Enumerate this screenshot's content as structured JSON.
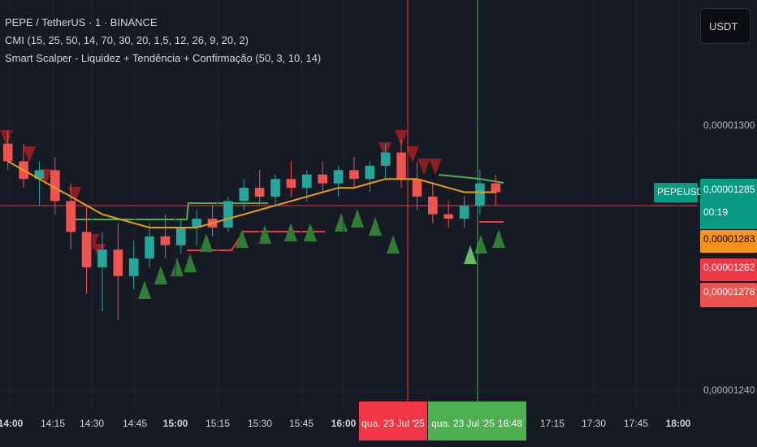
{
  "header": {
    "symbol": "PEPE / TetherUS · 1 · BINANCE",
    "indicator_1": "CMI (15, 25, 50, 14, 70, 30, 20, 1,5, 12, 26, 9, 20, 2)",
    "indicator_2": "Smart Scalper - Liquidez + Tendência + Confirmação (50, 3, 10, 14)"
  },
  "currency_button": "USDT",
  "price_axis": {
    "ticks": [
      {
        "value": 1.3e-05,
        "label": "0,00001300"
      },
      {
        "value": 1.24e-05,
        "label": "0,00001240"
      }
    ]
  },
  "price_tags": {
    "symbol": "PEPEUSDT",
    "last": "0,00001285",
    "countdown": "00:19",
    "orange": "0,00001283",
    "red_1": "0,00001282",
    "red_2": "0,00001278"
  },
  "time_axis": [
    {
      "text": "14:00",
      "bold": true
    },
    {
      "text": "14:15",
      "bold": false
    },
    {
      "text": "14:30",
      "bold": false
    },
    {
      "text": "14:45",
      "bold": false
    },
    {
      "text": "15:00",
      "bold": true
    },
    {
      "text": "15:15",
      "bold": false
    },
    {
      "text": "15:30",
      "bold": false
    },
    {
      "text": "15:45",
      "bold": false
    },
    {
      "text": "16:00",
      "bold": true
    },
    {
      "text": "17:15",
      "bold": false
    },
    {
      "text": "17:30",
      "bold": false
    },
    {
      "text": "17:45",
      "bold": false
    },
    {
      "text": "18:00",
      "bold": true
    }
  ],
  "cursor_labels": {
    "red_date": "qua. 23 Jul '25",
    "green_date": "qua. 23 Jul '25",
    "green_time": "16:48"
  },
  "candles": [
    {
      "o": 1.296e-05,
      "h": 1.299e-05,
      "l": 1.29e-05,
      "c": 1.292e-05
    },
    {
      "o": 1.292e-05,
      "h": 1.296e-05,
      "l": 1.286e-05,
      "c": 1.288e-05
    },
    {
      "o": 1.288e-05,
      "h": 1.292e-05,
      "l": 1.282e-05,
      "c": 1.29e-05
    },
    {
      "o": 1.29e-05,
      "h": 1.293e-05,
      "l": 1.28e-05,
      "c": 1.283e-05
    },
    {
      "o": 1.283e-05,
      "h": 1.287e-05,
      "l": 1.272e-05,
      "c": 1.276e-05
    },
    {
      "o": 1.276e-05,
      "h": 1.282e-05,
      "l": 1.262e-05,
      "c": 1.268e-05
    },
    {
      "o": 1.268e-05,
      "h": 1.276e-05,
      "l": 1.258e-05,
      "c": 1.272e-05
    },
    {
      "o": 1.272e-05,
      "h": 1.278e-05,
      "l": 1.256e-05,
      "c": 1.266e-05
    },
    {
      "o": 1.266e-05,
      "h": 1.274e-05,
      "l": 1.263e-05,
      "c": 1.27e-05
    },
    {
      "o": 1.27e-05,
      "h": 1.278e-05,
      "l": 1.268e-05,
      "c": 1.275e-05
    },
    {
      "o": 1.275e-05,
      "h": 1.28e-05,
      "l": 1.27e-05,
      "c": 1.273e-05
    },
    {
      "o": 1.273e-05,
      "h": 1.279e-05,
      "l": 1.271e-05,
      "c": 1.277e-05
    },
    {
      "o": 1.277e-05,
      "h": 1.281e-05,
      "l": 1.273e-05,
      "c": 1.279e-05
    },
    {
      "o": 1.279e-05,
      "h": 1.282e-05,
      "l": 1.275e-05,
      "c": 1.277e-05
    },
    {
      "o": 1.277e-05,
      "h": 1.284e-05,
      "l": 1.276e-05,
      "c": 1.283e-05
    },
    {
      "o": 1.283e-05,
      "h": 1.288e-05,
      "l": 1.281e-05,
      "c": 1.286e-05
    },
    {
      "o": 1.286e-05,
      "h": 1.29e-05,
      "l": 1.282e-05,
      "c": 1.284e-05
    },
    {
      "o": 1.284e-05,
      "h": 1.289e-05,
      "l": 1.282e-05,
      "c": 1.288e-05
    },
    {
      "o": 1.288e-05,
      "h": 1.292e-05,
      "l": 1.284e-05,
      "c": 1.286e-05
    },
    {
      "o": 1.286e-05,
      "h": 1.29e-05,
      "l": 1.283e-05,
      "c": 1.289e-05
    },
    {
      "o": 1.289e-05,
      "h": 1.292e-05,
      "l": 1.285e-05,
      "c": 1.287e-05
    },
    {
      "o": 1.287e-05,
      "h": 1.291e-05,
      "l": 1.284e-05,
      "c": 1.29e-05
    },
    {
      "o": 1.29e-05,
      "h": 1.293e-05,
      "l": 1.286e-05,
      "c": 1.288e-05
    },
    {
      "o": 1.288e-05,
      "h": 1.292e-05,
      "l": 1.285e-05,
      "c": 1.291e-05
    },
    {
      "o": 1.291e-05,
      "h": 1.296e-05,
      "l": 1.288e-05,
      "c": 1.294e-05
    },
    {
      "o": 1.294e-05,
      "h": 1.297e-05,
      "l": 1.286e-05,
      "c": 1.288e-05
    },
    {
      "o": 1.288e-05,
      "h": 1.292e-05,
      "l": 1.281e-05,
      "c": 1.284e-05
    },
    {
      "o": 1.284e-05,
      "h": 1.287e-05,
      "l": 1.278e-05,
      "c": 1.28e-05
    },
    {
      "o": 1.28e-05,
      "h": 1.283e-05,
      "l": 1.277e-05,
      "c": 1.279e-05
    },
    {
      "o": 1.279e-05,
      "h": 1.284e-05,
      "l": 1.277e-05,
      "c": 1.282e-05
    },
    {
      "o": 1.282e-05,
      "h": 1.29e-05,
      "l": 1.28e-05,
      "c": 1.287e-05
    },
    {
      "o": 1.287e-05,
      "h": 1.289e-05,
      "l": 1.282e-05,
      "c": 1.285e-05
    }
  ],
  "moving_average": [
    1.292e-05,
    1.29e-05,
    1.288e-05,
    1.286e-05,
    1.284e-05,
    1.282e-05,
    1.28e-05,
    1.279e-05,
    1.278e-05,
    1.277e-05,
    1.277e-05,
    1.277e-05,
    1.277e-05,
    1.278e-05,
    1.279e-05,
    1.28e-05,
    1.281e-05,
    1.282e-05,
    1.283e-05,
    1.284e-05,
    1.285e-05,
    1.286e-05,
    1.286e-05,
    1.287e-05,
    1.288e-05,
    1.288e-05,
    1.288e-05,
    1.287e-05,
    1.286e-05,
    1.285e-05,
    1.285e-05,
    1.285e-05
  ]
}
